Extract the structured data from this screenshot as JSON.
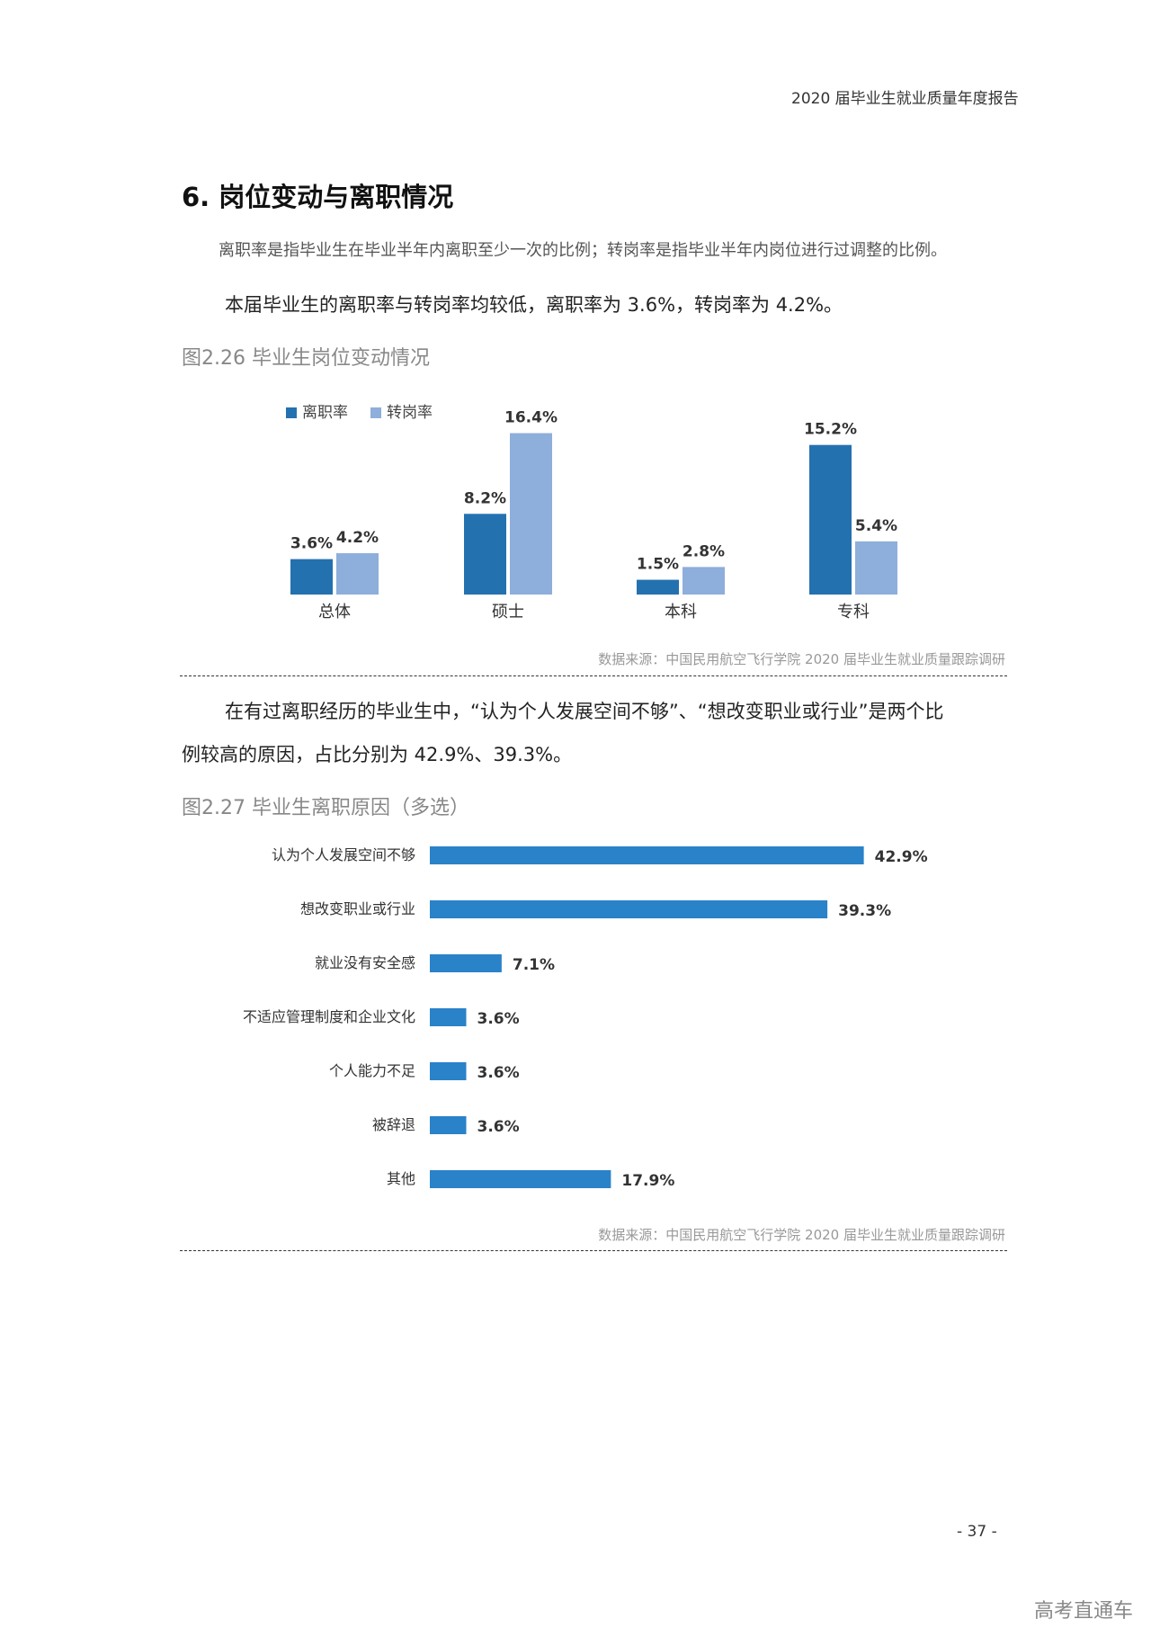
{
  "header": {
    "title": "2020 届毕业生就业质量年度报告"
  },
  "section": {
    "title": "6. 岗位变动与离职情况",
    "definition": "离职率是指毕业生在毕业半年内离职至少一次的比例；转岗率是指毕业半年内岗位进行过调整的比例。",
    "paragraph1": "本届毕业生的离职率与转岗率均较低，离职率为 3.6%，转岗率为 4.2%。",
    "paragraph2_line1": "在有过离职经历的毕业生中，“认为个人发展空间不够”、“想改变职业或行业”是两个比",
    "paragraph2_line2": "例较高的原因，占比分别为 42.9%、39.3%。"
  },
  "figure1": {
    "title": "图2.26 毕业生岗位变动情况",
    "source": "数据来源：中国民用航空飞行学院 2020 届毕业生就业质量跟踪调研"
  },
  "figure2": {
    "title": "图2.27 毕业生离职原因（多选）",
    "source": "数据来源：中国民用航空飞行学院 2020 届毕业生就业质量跟踪调研"
  },
  "chart_data": [
    {
      "type": "bar",
      "categories": [
        "总体",
        "硕士",
        "本科",
        "专科"
      ],
      "series": [
        {
          "name": "离职率",
          "values": [
            3.6,
            8.2,
            1.5,
            15.2
          ],
          "labels": [
            "3.6%",
            "8.2%",
            "1.5%",
            "15.2%"
          ],
          "color": "#2471b0"
        },
        {
          "name": "转岗率",
          "values": [
            4.2,
            16.4,
            2.8,
            5.4
          ],
          "labels": [
            "4.2%",
            "16.4%",
            "2.8%",
            "5.4%"
          ],
          "color": "#8eaedb"
        }
      ],
      "ylim": [
        0,
        17
      ],
      "grid": false,
      "legend": "top-left"
    },
    {
      "type": "bar",
      "orientation": "horizontal",
      "categories": [
        "认为个人发展空间不够",
        "想改变职业或行业",
        "就业没有安全感",
        "不适应管理制度和企业文化",
        "个人能力不足",
        "被辞退",
        "其他"
      ],
      "values": [
        42.9,
        39.3,
        7.1,
        3.6,
        3.6,
        3.6,
        17.9
      ],
      "labels": [
        "42.9%",
        "39.3%",
        "7.1%",
        "3.6%",
        "3.6%",
        "3.6%",
        "17.9%"
      ],
      "color": "#2a82c9",
      "xlim": [
        0,
        100
      ],
      "grid": false
    }
  ],
  "page_number": "- 37 -",
  "watermark": "高考直通车"
}
